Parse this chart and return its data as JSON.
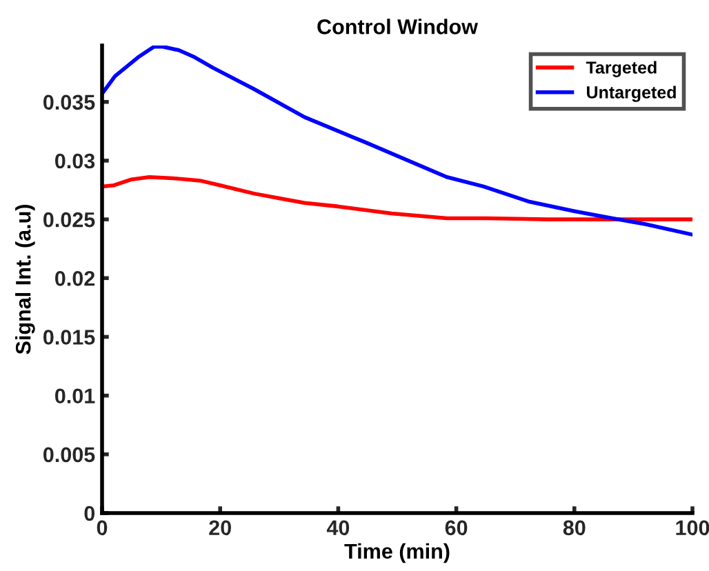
{
  "chart_data": {
    "type": "line",
    "title": "Control Window",
    "xlabel": "Time (min)",
    "ylabel": "Signal Int. (a.u)",
    "xlim": [
      0,
      100
    ],
    "xticks": [
      0,
      20,
      40,
      60,
      80,
      100
    ],
    "ylim": [
      0,
      0.0398
    ],
    "yticks": [
      0,
      0.005,
      0.01,
      0.015,
      0.02,
      0.025,
      0.03,
      0.035
    ],
    "grid": false,
    "legend": "top right",
    "series": [
      {
        "name": "Targeted",
        "color": "#ff0000",
        "x": [
          0,
          2,
          5,
          8,
          12,
          16.6,
          20,
          25.7,
          30,
          34.3,
          40,
          49,
          58.4,
          65,
          75.5,
          86.4,
          95,
          100
        ],
        "values": [
          0.0278,
          0.0279,
          0.0284,
          0.0286,
          0.0285,
          0.0283,
          0.0279,
          0.0272,
          0.0268,
          0.0264,
          0.0261,
          0.0255,
          0.0251,
          0.0251,
          0.025,
          0.025,
          0.025,
          0.025
        ]
      },
      {
        "name": "Untargeted",
        "color": "#0000ff",
        "x": [
          0,
          2.2,
          6.1,
          8.8,
          10.3,
          13,
          15.7,
          18.8,
          25.7,
          34.3,
          44.4,
          58.4,
          64.6,
          72.4,
          80,
          86.4,
          92,
          100
        ],
        "values": [
          0.0357,
          0.0372,
          0.0388,
          0.0397,
          0.0397,
          0.0394,
          0.0388,
          0.0379,
          0.0361,
          0.0337,
          0.0316,
          0.0286,
          0.0278,
          0.0265,
          0.0257,
          0.0251,
          0.0246,
          0.0237
        ]
      }
    ]
  }
}
